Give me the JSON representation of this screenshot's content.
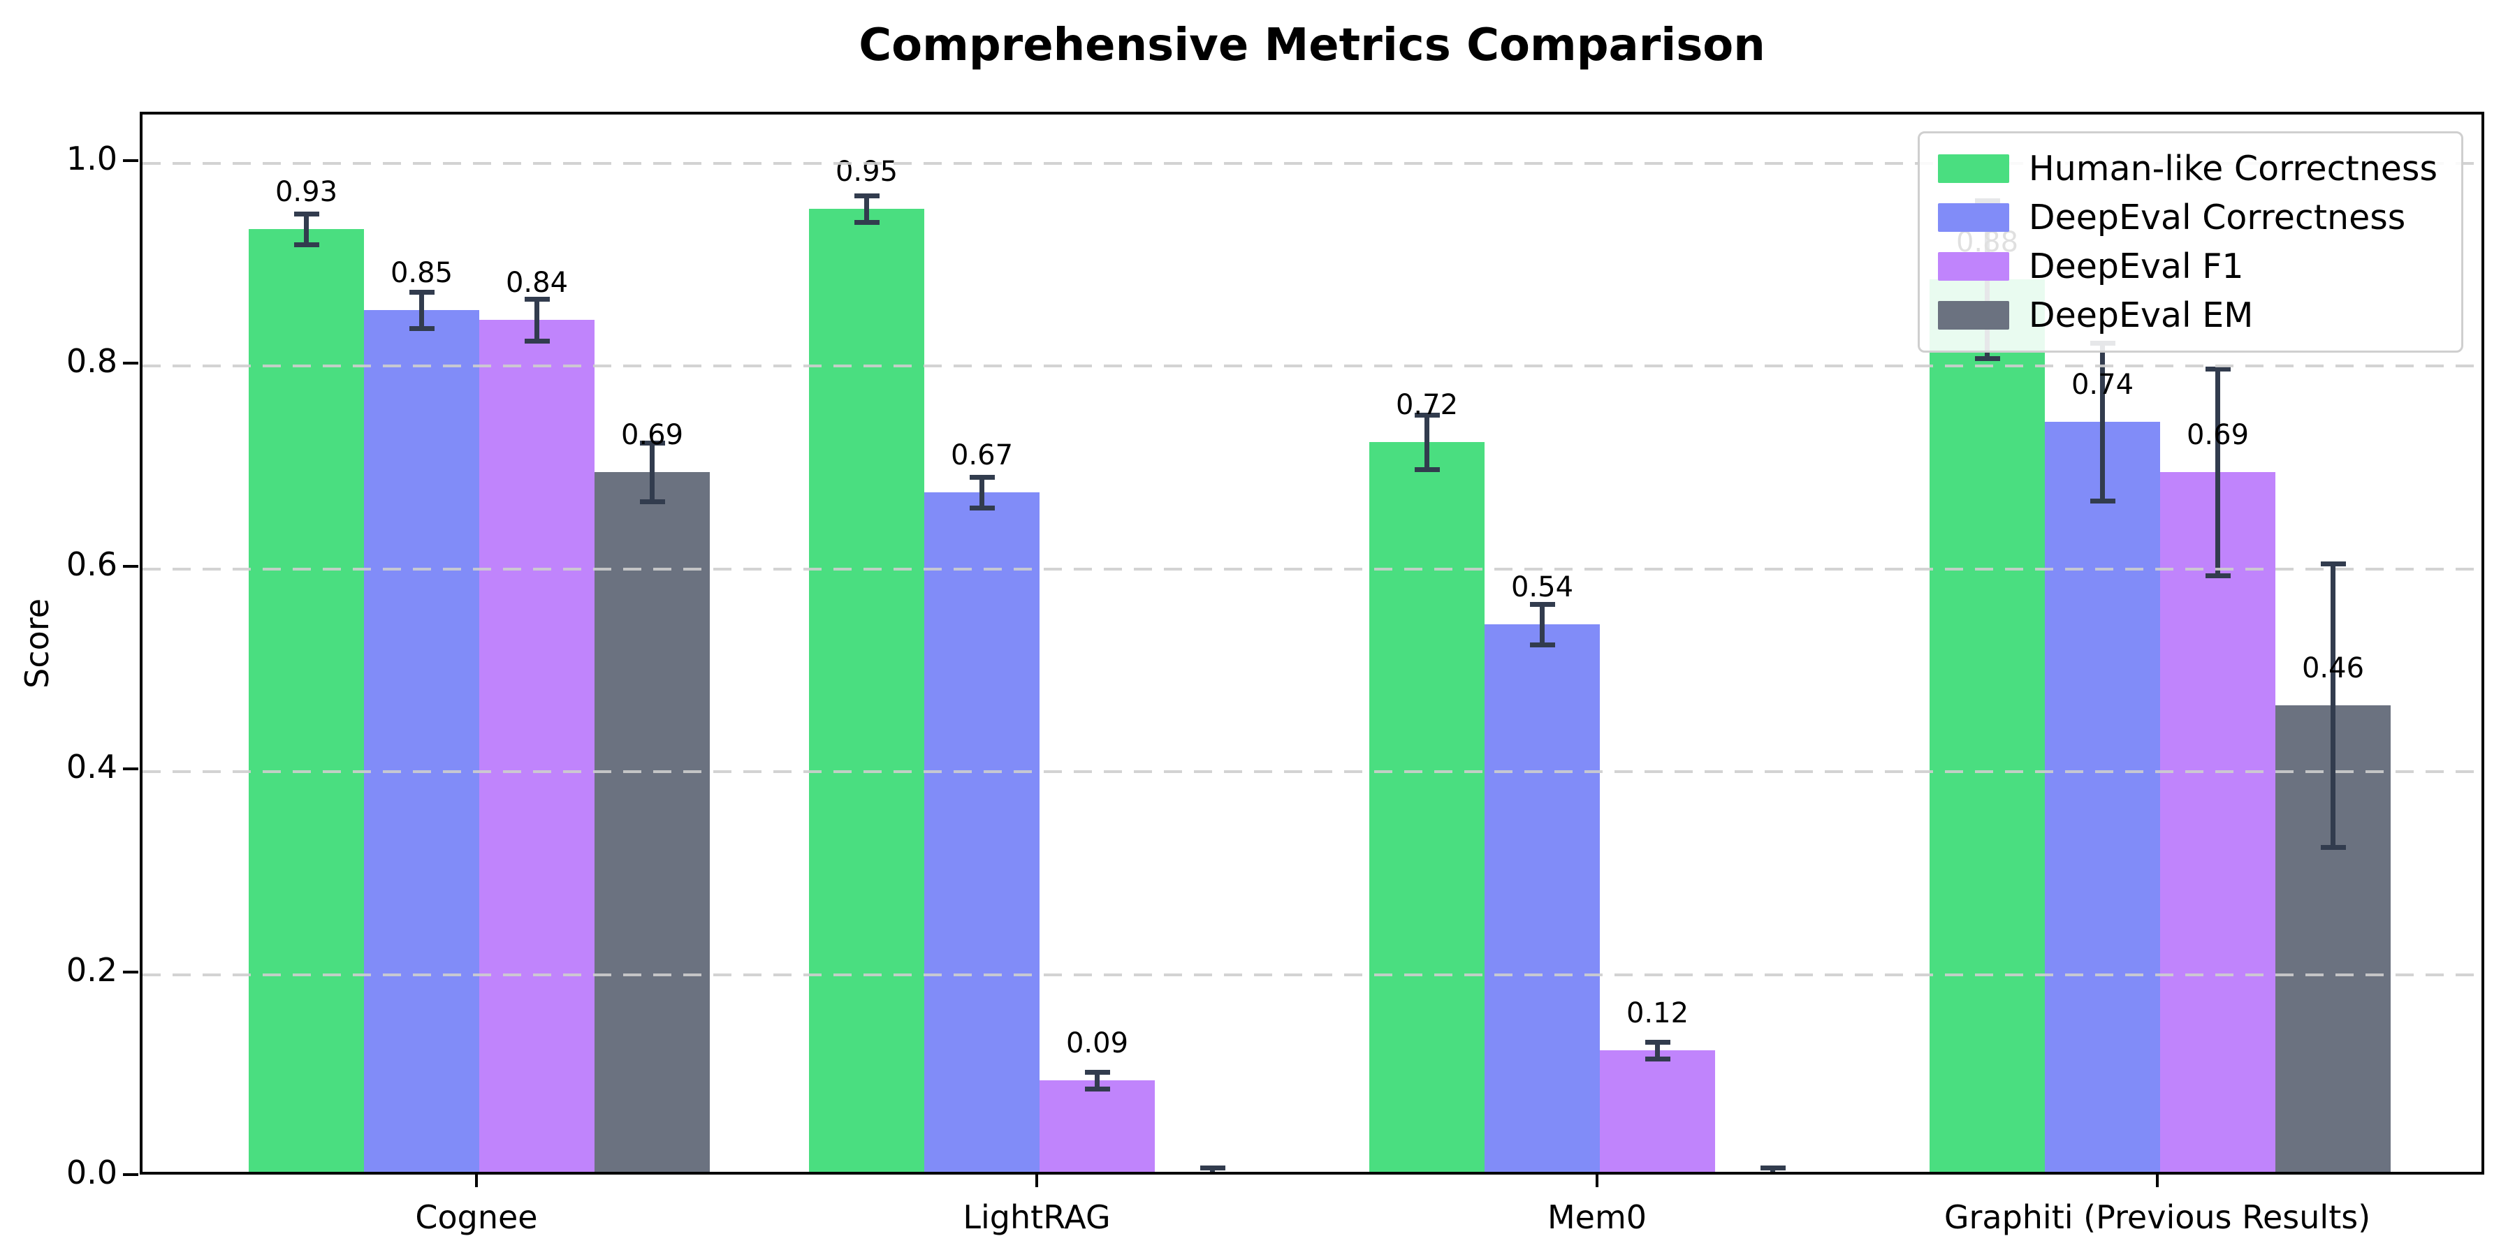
{
  "chart_data": {
    "type": "bar",
    "title": "Comprehensive Metrics Comparison",
    "xlabel": "",
    "ylabel": "Score",
    "ylim": [
      0,
      1.048
    ],
    "grid": "dashed-horizontal, drawn above bars",
    "legend_position": "upper right",
    "categories": [
      "Cognee",
      "LightRAG",
      "Mem0",
      "Graphiti (Previous Results)"
    ],
    "yticks": {
      "values": [
        0.0,
        0.2,
        0.4,
        0.6,
        0.8,
        1.0
      ],
      "labels": [
        "0.0",
        "0.2",
        "0.4",
        "0.6",
        "0.8",
        "1.0"
      ]
    },
    "series": [
      {
        "name": "Human-like Correctness",
        "color": "#4ade80",
        "values": [
          0.93,
          0.95,
          0.72,
          0.88
        ],
        "errors": [
          0.015,
          0.013,
          0.027,
          0.078
        ],
        "labels": [
          "0.93",
          "0.95",
          "0.72",
          "0.88"
        ]
      },
      {
        "name": "DeepEval Correctness",
        "color": "#818cf8",
        "values": [
          0.85,
          0.67,
          0.54,
          0.74
        ],
        "errors": [
          0.018,
          0.015,
          0.02,
          0.078
        ],
        "labels": [
          "0.85",
          "0.67",
          "0.54",
          "0.74"
        ]
      },
      {
        "name": "DeepEval F1",
        "color": "#c084fc",
        "values": [
          0.84,
          0.09,
          0.12,
          0.69
        ],
        "errors": [
          0.021,
          0.008,
          0.008,
          0.102
        ],
        "labels": [
          "0.84",
          "0.09",
          "0.12",
          "0.69"
        ]
      },
      {
        "name": "DeepEval EM",
        "color": "#6b7280",
        "values": [
          0.69,
          0.0,
          0.0,
          0.46
        ],
        "errors": [
          0.029,
          0.004,
          0.004,
          0.14
        ],
        "labels": [
          "0.69",
          null,
          null,
          "0.46"
        ]
      }
    ],
    "style": {
      "error_bar_color": "#323c4e",
      "grid_color": "#cecece",
      "axis_color": "#000000",
      "background": "#ffffff"
    }
  }
}
